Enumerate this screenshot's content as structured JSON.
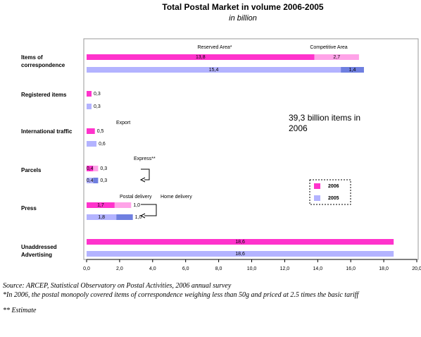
{
  "chart_data": {
    "type": "bar",
    "orientation": "horizontal",
    "title": "Total Postal Market in volume 2006-2005",
    "subtitle": "in billion",
    "categories": [
      "Items of correspondence",
      "Registered items",
      "International traffic",
      "Parcels",
      "Press",
      "Unaddressed Advertising"
    ],
    "series": [
      {
        "name": "2006",
        "color": "#ff33cc",
        "values": [
          13.8,
          0.3,
          0.5,
          0.4,
          1.7,
          18.6
        ],
        "value_labels": [
          "13,8",
          "0,3",
          "0,5",
          "0,4",
          "1,7",
          "18,6"
        ],
        "second_color": "#ffa3e8",
        "second_values": [
          2.7,
          null,
          null,
          0.3,
          1.0,
          null
        ],
        "second_value_labels": [
          "2,7",
          null,
          null,
          "0,3",
          "1,0",
          null
        ]
      },
      {
        "name": "2005",
        "color": "#b3b3ff",
        "values": [
          15.4,
          0.3,
          0.6,
          0.4,
          1.8,
          18.6
        ],
        "value_labels": [
          "15,4",
          "0,3",
          "0,6",
          "0,4",
          "1,8",
          "18,6"
        ],
        "second_color": "#6f7fe0",
        "second_values": [
          1.4,
          null,
          null,
          0.3,
          1.0,
          null
        ],
        "second_value_labels": [
          "1,4",
          null,
          null,
          "0,3",
          "1,0",
          null
        ]
      }
    ],
    "xlim": [
      0,
      20
    ],
    "xticks": [
      {
        "value": 0,
        "label": "0,0"
      },
      {
        "value": 2,
        "label": "2,0"
      },
      {
        "value": 4,
        "label": "4,0"
      },
      {
        "value": 6,
        "label": "6,0"
      },
      {
        "value": 8,
        "label": "8,0"
      },
      {
        "value": 10,
        "label": "10,0"
      },
      {
        "value": 12,
        "label": "12,0"
      },
      {
        "value": 14,
        "label": "14,0"
      },
      {
        "value": 16,
        "label": "16,0"
      },
      {
        "value": 18,
        "label": "18,0"
      },
      {
        "value": 20,
        "label": "20,0"
      }
    ],
    "annotations": [
      "Reserved Area*",
      "Competitive Area",
      "Export",
      "Express**",
      "Postal delivery",
      "Home delivery",
      "39,3 billion items in 2006"
    ],
    "legend": "right",
    "footnotes": [
      "Source: ARCEP, Statistical Observatory on Postal Activities, 2006 annual survey",
      "*In 2006, the postal monopoly covered items of correspondence weighing less than 50g and priced at 2.5 times the basic tariff",
      "** Estimate"
    ]
  }
}
